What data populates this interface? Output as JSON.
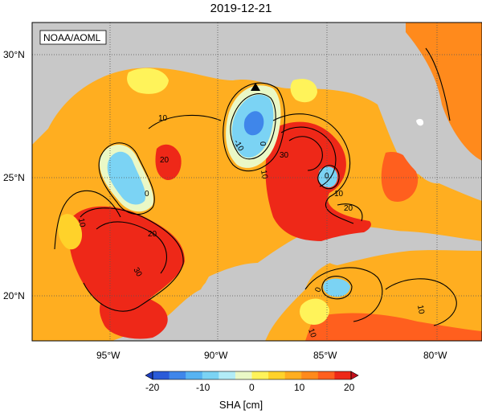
{
  "title": "2019-12-21",
  "source_label": "NOAA/AOML",
  "lat_labels": [
    "30°N",
    "25°N",
    "20°N"
  ],
  "lon_labels": [
    "95°W",
    "90°W",
    "85°W",
    "80°W"
  ],
  "colorbar": {
    "title": "SHA [cm]",
    "ticks": [
      "-20",
      "-10",
      "0",
      "10",
      "20"
    ],
    "colors": [
      "#2b5bd8",
      "#3f86ea",
      "#57b3f2",
      "#7bd3f4",
      "#b2ecf7",
      "#eaf8c6",
      "#fff35a",
      "#ffd22a",
      "#ffae20",
      "#ff8a1c",
      "#ff5f1e",
      "#ee2818"
    ]
  },
  "contour_labels": [
    "-10",
    "0",
    "10",
    "20",
    "30",
    "0",
    "10",
    "20",
    "30",
    "10",
    "0",
    "10",
    "0",
    "10",
    "20",
    "10"
  ]
}
